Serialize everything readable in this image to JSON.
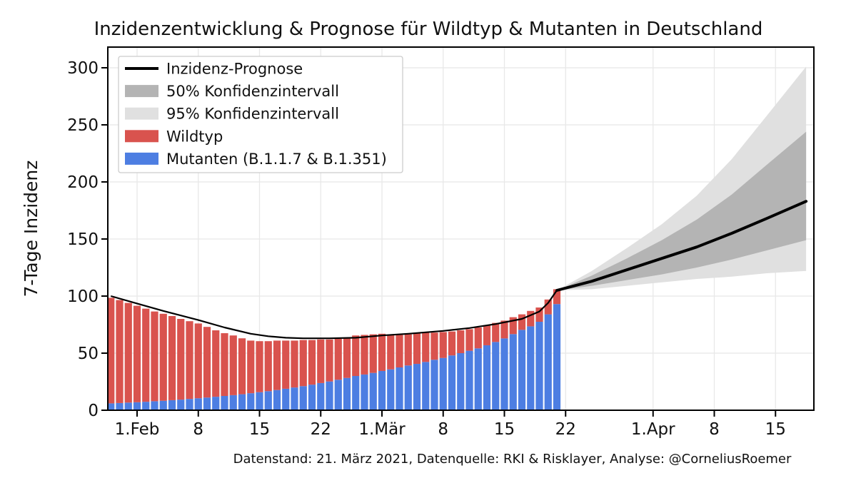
{
  "title": "Inzidenzentwicklung & Prognose für Wildtyp & Mutanten in Deutschland",
  "caption": "Datenstand: 21. März 2021, Datenquelle: RKI & Risklayer, Analyse: @CorneliusRoemer",
  "colors": {
    "wildtyp": "#d9534e",
    "mutanten": "#4d7ee2",
    "line": "#000000",
    "ci50": "#b4b4b4",
    "ci95": "#e0e0e0",
    "grid": "#e8e8e8",
    "spine": "#000000",
    "text": "#111111",
    "legend_border": "#cccccc"
  },
  "chart_data": {
    "type": "bar",
    "overlays": [
      "line",
      "confidence-band"
    ],
    "title": "Inzidenzentwicklung & Prognose für Wildtyp & Mutanten in Deutschland",
    "xlabel": "",
    "ylabel": "7-Tage Inzidenz",
    "ylim": [
      0,
      318
    ],
    "yticks": [
      0,
      50,
      100,
      150,
      200,
      250,
      300
    ],
    "grid": true,
    "legend_position": "upper left",
    "x_axis": {
      "tick_days": [
        0,
        7,
        14,
        21,
        28,
        35,
        42,
        49,
        59,
        66,
        73
      ],
      "tick_labels": [
        "1.Feb",
        "8",
        "15",
        "22",
        "1.Mär",
        "8",
        "15",
        "22",
        "1.Apr",
        "8",
        "15"
      ]
    },
    "bars": {
      "start_day": -3,
      "series": [
        {
          "name": "Wildtyp",
          "values": [
            92.5,
            90.2,
            87.3,
            84.5,
            81.6,
            78.6,
            76.2,
            73.7,
            70.7,
            68.1,
            65.5,
            61.9,
            58.2,
            55,
            52.3,
            49,
            46.1,
            44.7,
            43.8,
            43.3,
            42.2,
            41.1,
            40.4,
            39.1,
            38.2,
            36.8,
            35.8,
            34.7,
            35.5,
            34.7,
            33.8,
            32.6,
            30.2,
            28.5,
            27.3,
            27.4,
            25.7,
            23.8,
            22.7,
            21,
            20,
            18.9,
            18.3,
            17.6,
            16.7,
            15.6,
            14.8,
            13.6,
            13.5,
            12.5,
            13,
            13
          ]
        },
        {
          "name": "Mutanten (B.1.1.7 & B.1.351)",
          "values": [
            6,
            6.3,
            6.7,
            7,
            7.4,
            7.9,
            8.3,
            8.8,
            9.3,
            9.9,
            10.5,
            11.1,
            11.8,
            12.5,
            13.2,
            14,
            14.9,
            15.8,
            16.7,
            17.7,
            18.8,
            19.9,
            21.1,
            22.4,
            23.8,
            25.2,
            26.7,
            28.3,
            30,
            31.3,
            32.7,
            34.4,
            35.8,
            37.5,
            39.2,
            40.6,
            42.3,
            44.2,
            45.8,
            48,
            50,
            52.1,
            54.2,
            56.9,
            59.8,
            62.9,
            66.7,
            70.4,
            73.5,
            77.5,
            84,
            93
          ]
        }
      ]
    },
    "fit_line": {
      "name": "Inzidenz-Prognose",
      "points": [
        [
          -3,
          100
        ],
        [
          0,
          93.5
        ],
        [
          3,
          87
        ],
        [
          7,
          79
        ],
        [
          10,
          72.5
        ],
        [
          13,
          67
        ],
        [
          15,
          64.8
        ],
        [
          17,
          63.5
        ],
        [
          19,
          63
        ],
        [
          22,
          63
        ],
        [
          25,
          63.5
        ],
        [
          28,
          65.5
        ],
        [
          31,
          67
        ],
        [
          35,
          69.5
        ],
        [
          38,
          72
        ],
        [
          41,
          75.5
        ],
        [
          44,
          80
        ],
        [
          46,
          86.5
        ],
        [
          47,
          94
        ],
        [
          48,
          105
        ]
      ]
    },
    "forecast": {
      "days": [
        48,
        52,
        56,
        60,
        64,
        68,
        72,
        76.5
      ],
      "median": [
        105,
        113,
        123,
        133,
        143,
        155,
        168,
        183
      ],
      "ci50_lo": [
        105,
        109,
        114,
        119,
        125,
        132,
        140,
        149
      ],
      "ci50_hi": [
        105,
        118,
        133,
        149,
        167,
        189,
        215,
        244
      ],
      "ci95_lo": [
        105,
        106,
        109,
        112,
        115,
        117,
        120,
        122
      ],
      "ci95_hi": [
        105,
        122,
        142,
        163,
        188,
        220,
        258,
        301
      ]
    },
    "legend": [
      {
        "label": "Inzidenz-Prognose",
        "swatch": "line",
        "color_key": "line"
      },
      {
        "label": "50% Konfidenzintervall",
        "swatch": "rect",
        "color_key": "ci50"
      },
      {
        "label": "95% Konfidenzintervall",
        "swatch": "rect",
        "color_key": "ci95"
      },
      {
        "label": "Wildtyp",
        "swatch": "rect",
        "color_key": "wildtyp"
      },
      {
        "label": "Mutanten (B.1.1.7 & B.1.351)",
        "swatch": "rect",
        "color_key": "mutanten"
      }
    ]
  }
}
